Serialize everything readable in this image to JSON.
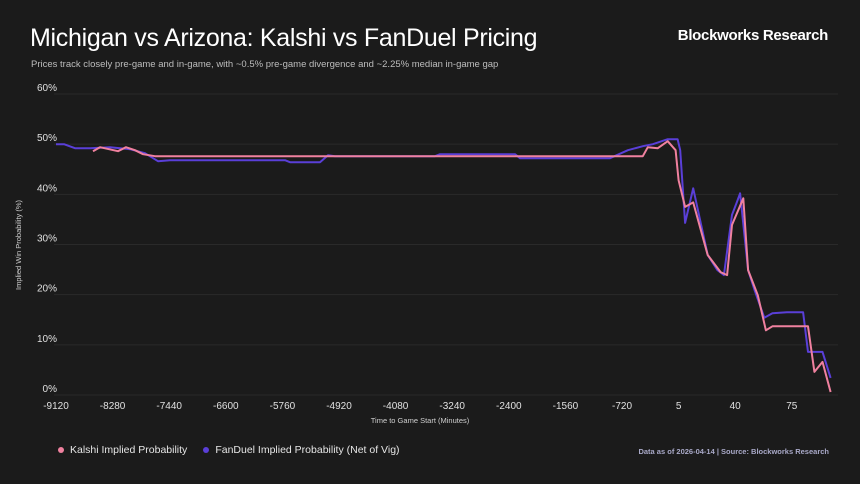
{
  "header": {
    "title": "Michigan vs Arizona: Kalshi vs FanDuel Pricing",
    "subtitle": "Prices track closely pre-game and in-game, with ~0.5% pre-game divergence and ~2.25% median in-game gap",
    "brand": "Blockworks Research"
  },
  "footer": {
    "source": "Data as of 2026-04-14 | Source: Blockworks Research"
  },
  "chart_data": {
    "type": "line",
    "title": "Michigan vs Arizona: Kalshi vs FanDuel Pricing",
    "xlabel": "Time to Game Start (Minutes)",
    "ylabel": "Implied Win Probability (%)",
    "x_ticks": [
      -9120,
      -8280,
      -7440,
      -6600,
      -5760,
      -4920,
      -4080,
      -3240,
      -2400,
      -1560,
      -720,
      5,
      40,
      75
    ],
    "x_tick_labels": [
      "-9120",
      "-8280",
      "-7440",
      "-6600",
      "-5760",
      "-4920",
      "-4080",
      "-3240",
      "-2400",
      "-1560",
      "-720",
      "5",
      "40",
      "75"
    ],
    "x_scale": "non-uniform (tick spacing equal)",
    "y_ticks": [
      0,
      10,
      20,
      30,
      40,
      50,
      60
    ],
    "y_tick_labels": [
      "0%",
      "10%",
      "20%",
      "30%",
      "40%",
      "50%",
      "60%"
    ],
    "ylim": [
      0,
      60
    ],
    "grid": "horizontal",
    "legend_placement": "bottom-left",
    "series": [
      {
        "name": "Kalshi Implied Probability",
        "color": "#f0819f",
        "points": [
          [
            -8571,
            48.6
          ],
          [
            -8467,
            49.4
          ],
          [
            -8200,
            48.6
          ],
          [
            -8081,
            49.4
          ],
          [
            -7948,
            48.8
          ],
          [
            -7829,
            48.0
          ],
          [
            -7651,
            47.6
          ],
          [
            -453,
            47.6
          ],
          [
            -389,
            49.4
          ],
          [
            -262,
            49.2
          ],
          [
            -135,
            50.6
          ],
          [
            -33,
            48.8
          ],
          [
            5,
            42.8
          ],
          [
            9,
            37.5
          ],
          [
            14,
            38.4
          ],
          [
            23,
            27.9
          ],
          [
            31,
            24.5
          ],
          [
            35,
            23.9
          ],
          [
            38,
            33.9
          ],
          [
            45,
            39.2
          ],
          [
            48,
            24.9
          ],
          [
            54,
            19.9
          ],
          [
            59,
            12.9
          ],
          [
            63,
            13.7
          ],
          [
            85,
            13.7
          ],
          [
            89,
            4.6
          ],
          [
            94,
            6.6
          ],
          [
            99,
            0.6
          ]
        ]
      },
      {
        "name": "FanDuel Implied Probability (Net of Vig)",
        "color": "#5a3fd8",
        "points": [
          [
            -9120,
            50.0
          ],
          [
            -9001,
            50.0
          ],
          [
            -8838,
            49.2
          ],
          [
            -8615,
            49.2
          ],
          [
            -8319,
            49.4
          ],
          [
            -8022,
            49.0
          ],
          [
            -7799,
            48.2
          ],
          [
            -7606,
            46.6
          ],
          [
            -7428,
            46.8
          ],
          [
            -6835,
            46.8
          ],
          [
            -5722,
            46.8
          ],
          [
            -5647,
            46.4
          ],
          [
            -5202,
            46.4
          ],
          [
            -5083,
            47.8
          ],
          [
            -4980,
            47.6
          ],
          [
            -3496,
            47.6
          ],
          [
            -3421,
            48.0
          ],
          [
            -2308,
            48.0
          ],
          [
            -2234,
            47.2
          ],
          [
            -898,
            47.2
          ],
          [
            -644,
            48.8
          ],
          [
            -453,
            49.6
          ],
          [
            -326,
            50.0
          ],
          [
            -135,
            51.0
          ],
          [
            -8,
            51.0
          ],
          [
            6,
            48.8
          ],
          [
            9,
            34.3
          ],
          [
            14,
            41.2
          ],
          [
            17,
            36.8
          ],
          [
            23,
            27.9
          ],
          [
            29,
            24.9
          ],
          [
            33,
            23.9
          ],
          [
            38,
            35.9
          ],
          [
            41,
            38.4
          ],
          [
            43,
            40.2
          ],
          [
            48,
            24.9
          ],
          [
            52,
            20.9
          ],
          [
            58,
            15.4
          ],
          [
            63,
            16.3
          ],
          [
            72,
            16.5
          ],
          [
            82,
            16.5
          ],
          [
            85,
            8.6
          ],
          [
            94,
            8.6
          ],
          [
            99,
            3.4
          ]
        ]
      }
    ]
  }
}
